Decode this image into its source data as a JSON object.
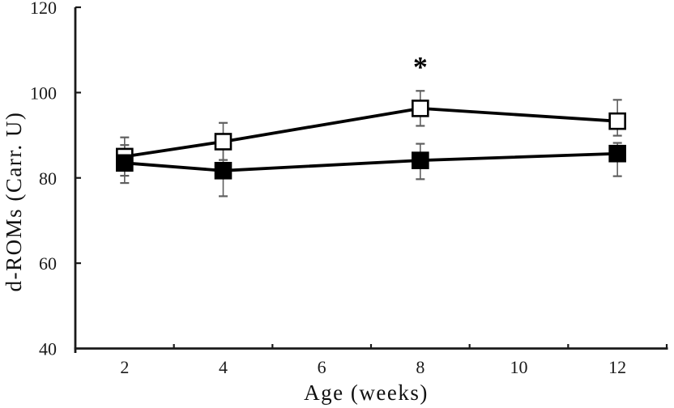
{
  "chart_data": {
    "type": "line",
    "title": "",
    "xlabel": "Age (weeks)",
    "ylabel": "d-ROMs  (Carr. U)",
    "x_categories": [
      2,
      4,
      6,
      8,
      10,
      12
    ],
    "ylim": [
      40,
      120
    ],
    "yticks": [
      40,
      60,
      80,
      100,
      120
    ],
    "grid": false,
    "legend": "none",
    "axis_color": "#1a1a1a",
    "error_bar_color": "#5f5f5f",
    "background_color": "#ffffff",
    "series": [
      {
        "name": "open-squares-group",
        "marker": "open-square",
        "line_color": "#000000",
        "marker_fill": "#ffffff",
        "marker_stroke": "#000000",
        "x": [
          2,
          4,
          8,
          12
        ],
        "y": [
          85.0,
          88.5,
          96.3,
          93.3
        ],
        "err_up": [
          4.5,
          4.4,
          4.1,
          5.0
        ],
        "err_down": [
          4.5,
          4.3,
          4.1,
          3.4
        ]
      },
      {
        "name": "filled-squares-group",
        "marker": "filled-square",
        "line_color": "#000000",
        "marker_fill": "#000000",
        "marker_stroke": "#000000",
        "x": [
          2,
          4,
          8,
          12
        ],
        "y": [
          83.5,
          81.7,
          84.1,
          85.7
        ],
        "err_up": [
          4.2,
          5.5,
          3.9,
          2.5
        ],
        "err_down": [
          4.7,
          6.0,
          4.4,
          5.3
        ]
      }
    ],
    "annotations": [
      {
        "text": "*",
        "x": 8,
        "y": 107.0
      }
    ]
  }
}
